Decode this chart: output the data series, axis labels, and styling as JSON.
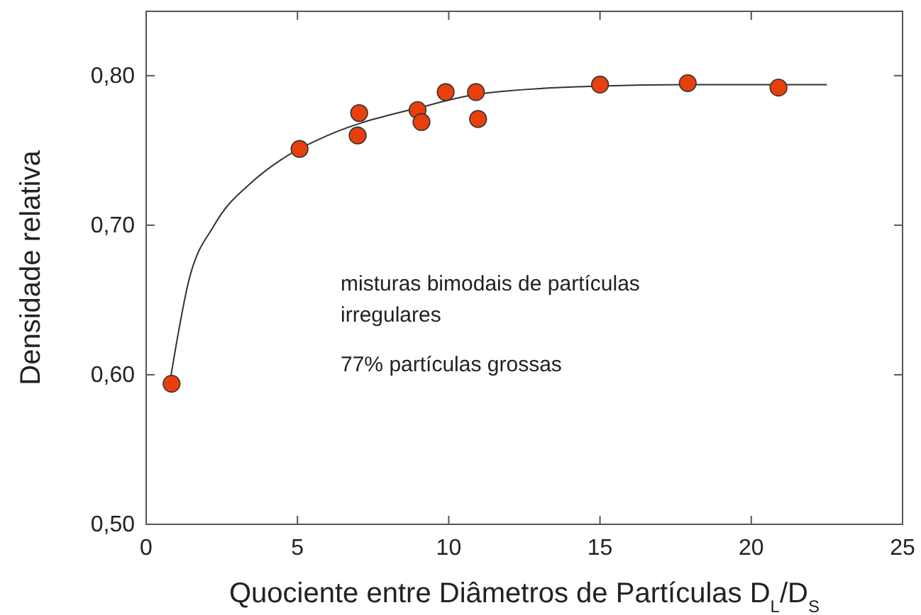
{
  "chart_data": {
    "type": "scatter",
    "xlabel": "Quociente entre Diâmetros de Partículas D$_{L}$/D$_{S}$",
    "ylabel": "Densidade relativa",
    "xlim": [
      0,
      25
    ],
    "xticks": [
      0,
      5,
      10,
      15,
      20,
      25
    ],
    "ylim": [
      0.5,
      0.843
    ],
    "yticks": [
      {
        "value": 0.5,
        "label": "0,50"
      },
      {
        "value": 0.6,
        "label": "0,60"
      },
      {
        "value": 0.7,
        "label": "0,70"
      },
      {
        "value": 0.8,
        "label": "0,80"
      }
    ],
    "marker": "circle",
    "grid": false,
    "series": [
      {
        "color": "#e8400c",
        "x": [
          0.84,
          5.07,
          7.04,
          6.99,
          8.97,
          9.1,
          9.9,
          10.9,
          10.97,
          15.0,
          17.9,
          20.9
        ],
        "values": [
          0.594,
          0.751,
          0.775,
          0.76,
          0.777,
          0.769,
          0.789,
          0.789,
          0.771,
          0.794,
          0.795,
          0.792
        ]
      },
      {
        "type": "line",
        "color": "#333333",
        "marker": "none",
        "x": [
          0.8,
          1.41,
          2.25,
          3.56,
          4.4,
          6.0,
          9.1,
          11.1,
          14.96,
          17.8,
          22.5
        ],
        "values": [
          0.597,
          0.663,
          0.7,
          0.73,
          0.743,
          0.76,
          0.779,
          0.788,
          0.793,
          0.794,
          0.794
        ]
      }
    ],
    "annotations": [
      "misturas bimodais de partículas irregulares",
      "77% partículas grossas"
    ]
  }
}
